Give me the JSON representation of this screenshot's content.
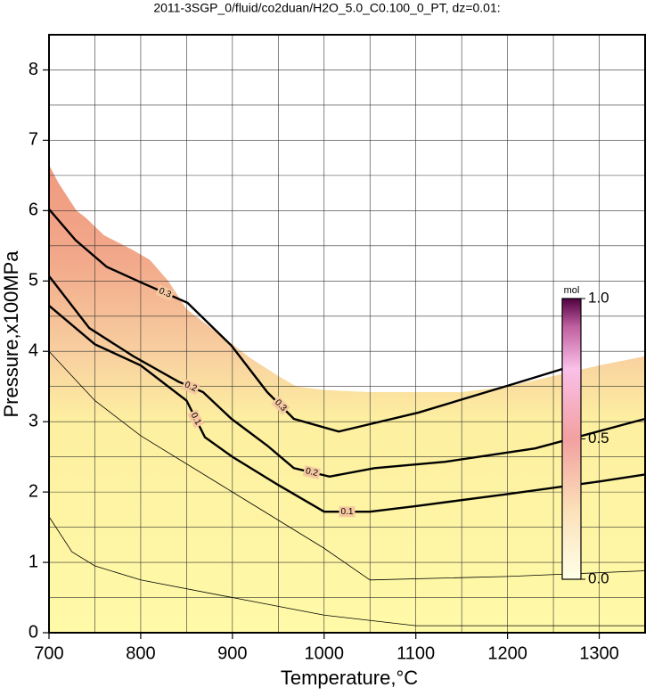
{
  "chart_data": {
    "type": "contour",
    "title": "2011-3SGP_0/fluid/co2duan/H2O_5.0_C0.100_0_PT, dz=0.01:",
    "x_label": "Temperature,°C",
    "y_label": "Pressure,x100MPa",
    "xlim": [
      700,
      1350
    ],
    "ylim": [
      0,
      8.5
    ],
    "xticks": [
      700,
      800,
      900,
      1000,
      1100,
      1200,
      1300
    ],
    "yticks": [
      0,
      1,
      2,
      3,
      4,
      5,
      6,
      7,
      8
    ],
    "xminor": [
      750,
      850,
      950,
      1050,
      1150,
      1250
    ],
    "yminor": [
      0.5,
      1.5,
      2.5,
      3.5,
      4.5,
      5.5,
      6.5,
      7.5
    ],
    "grid": true,
    "region": {
      "x": [
        700,
        710,
        720,
        730,
        740,
        760,
        790,
        810,
        830,
        850,
        870,
        900,
        920,
        950,
        970,
        1000,
        1050,
        1100,
        1150,
        1200,
        1250,
        1300,
        1350
      ],
      "values": [
        6.65,
        6.4,
        6.2,
        6.0,
        5.9,
        5.65,
        5.45,
        5.3,
        5.0,
        4.6,
        4.4,
        4.1,
        3.9,
        3.65,
        3.5,
        3.45,
        3.42,
        3.42,
        3.42,
        3.5,
        3.65,
        3.8,
        3.93
      ]
    },
    "series": [
      {
        "name": "0.3",
        "color": "#000000",
        "x": [
          700,
          729,
          763,
          802,
          851,
          899,
          938,
          967,
          1016,
          1103,
          1210,
          1260
        ],
        "values": [
          6.02,
          5.58,
          5.2,
          4.97,
          4.69,
          4.08,
          3.42,
          3.04,
          2.86,
          3.13,
          3.55,
          3.75
        ]
      },
      {
        "name": "0.2",
        "color": "#000000",
        "x": [
          700,
          744,
          792,
          841,
          868,
          899,
          938,
          967,
          1006,
          1055,
          1132,
          1230,
          1350
        ],
        "values": [
          5.07,
          4.33,
          3.93,
          3.57,
          3.42,
          3.04,
          2.66,
          2.34,
          2.22,
          2.34,
          2.43,
          2.62,
          3.04
        ]
      },
      {
        "name": "0.1",
        "color": "#000000",
        "x": [
          700,
          750,
          800,
          850,
          870,
          900,
          950,
          1000,
          1050,
          1100,
          1200,
          1300,
          1350
        ],
        "values": [
          4.65,
          4.1,
          3.8,
          3.3,
          2.78,
          2.5,
          2.1,
          1.72,
          1.72,
          1.8,
          1.97,
          2.15,
          2.25
        ]
      },
      {
        "color": "#000000",
        "x": [
          700,
          750,
          800,
          900,
          1000,
          1050,
          1200,
          1350
        ],
        "values": [
          4.0,
          3.3,
          2.8,
          2.0,
          1.2,
          0.75,
          0.8,
          0.88
        ]
      },
      {
        "color": "#000000",
        "x": [
          700,
          725,
          750,
          800,
          900,
          1000,
          1100,
          1350
        ],
        "values": [
          1.65,
          1.15,
          0.95,
          0.75,
          0.5,
          0.25,
          0.1,
          0.1
        ]
      }
    ],
    "colorbar": {
      "label": "mol",
      "lim": [
        0,
        1
      ],
      "ticks": [
        {
          "value": 0,
          "label": "0.0"
        },
        0.5,
        {
          "value": 1,
          "label": "1.0"
        }
      ]
    }
  }
}
